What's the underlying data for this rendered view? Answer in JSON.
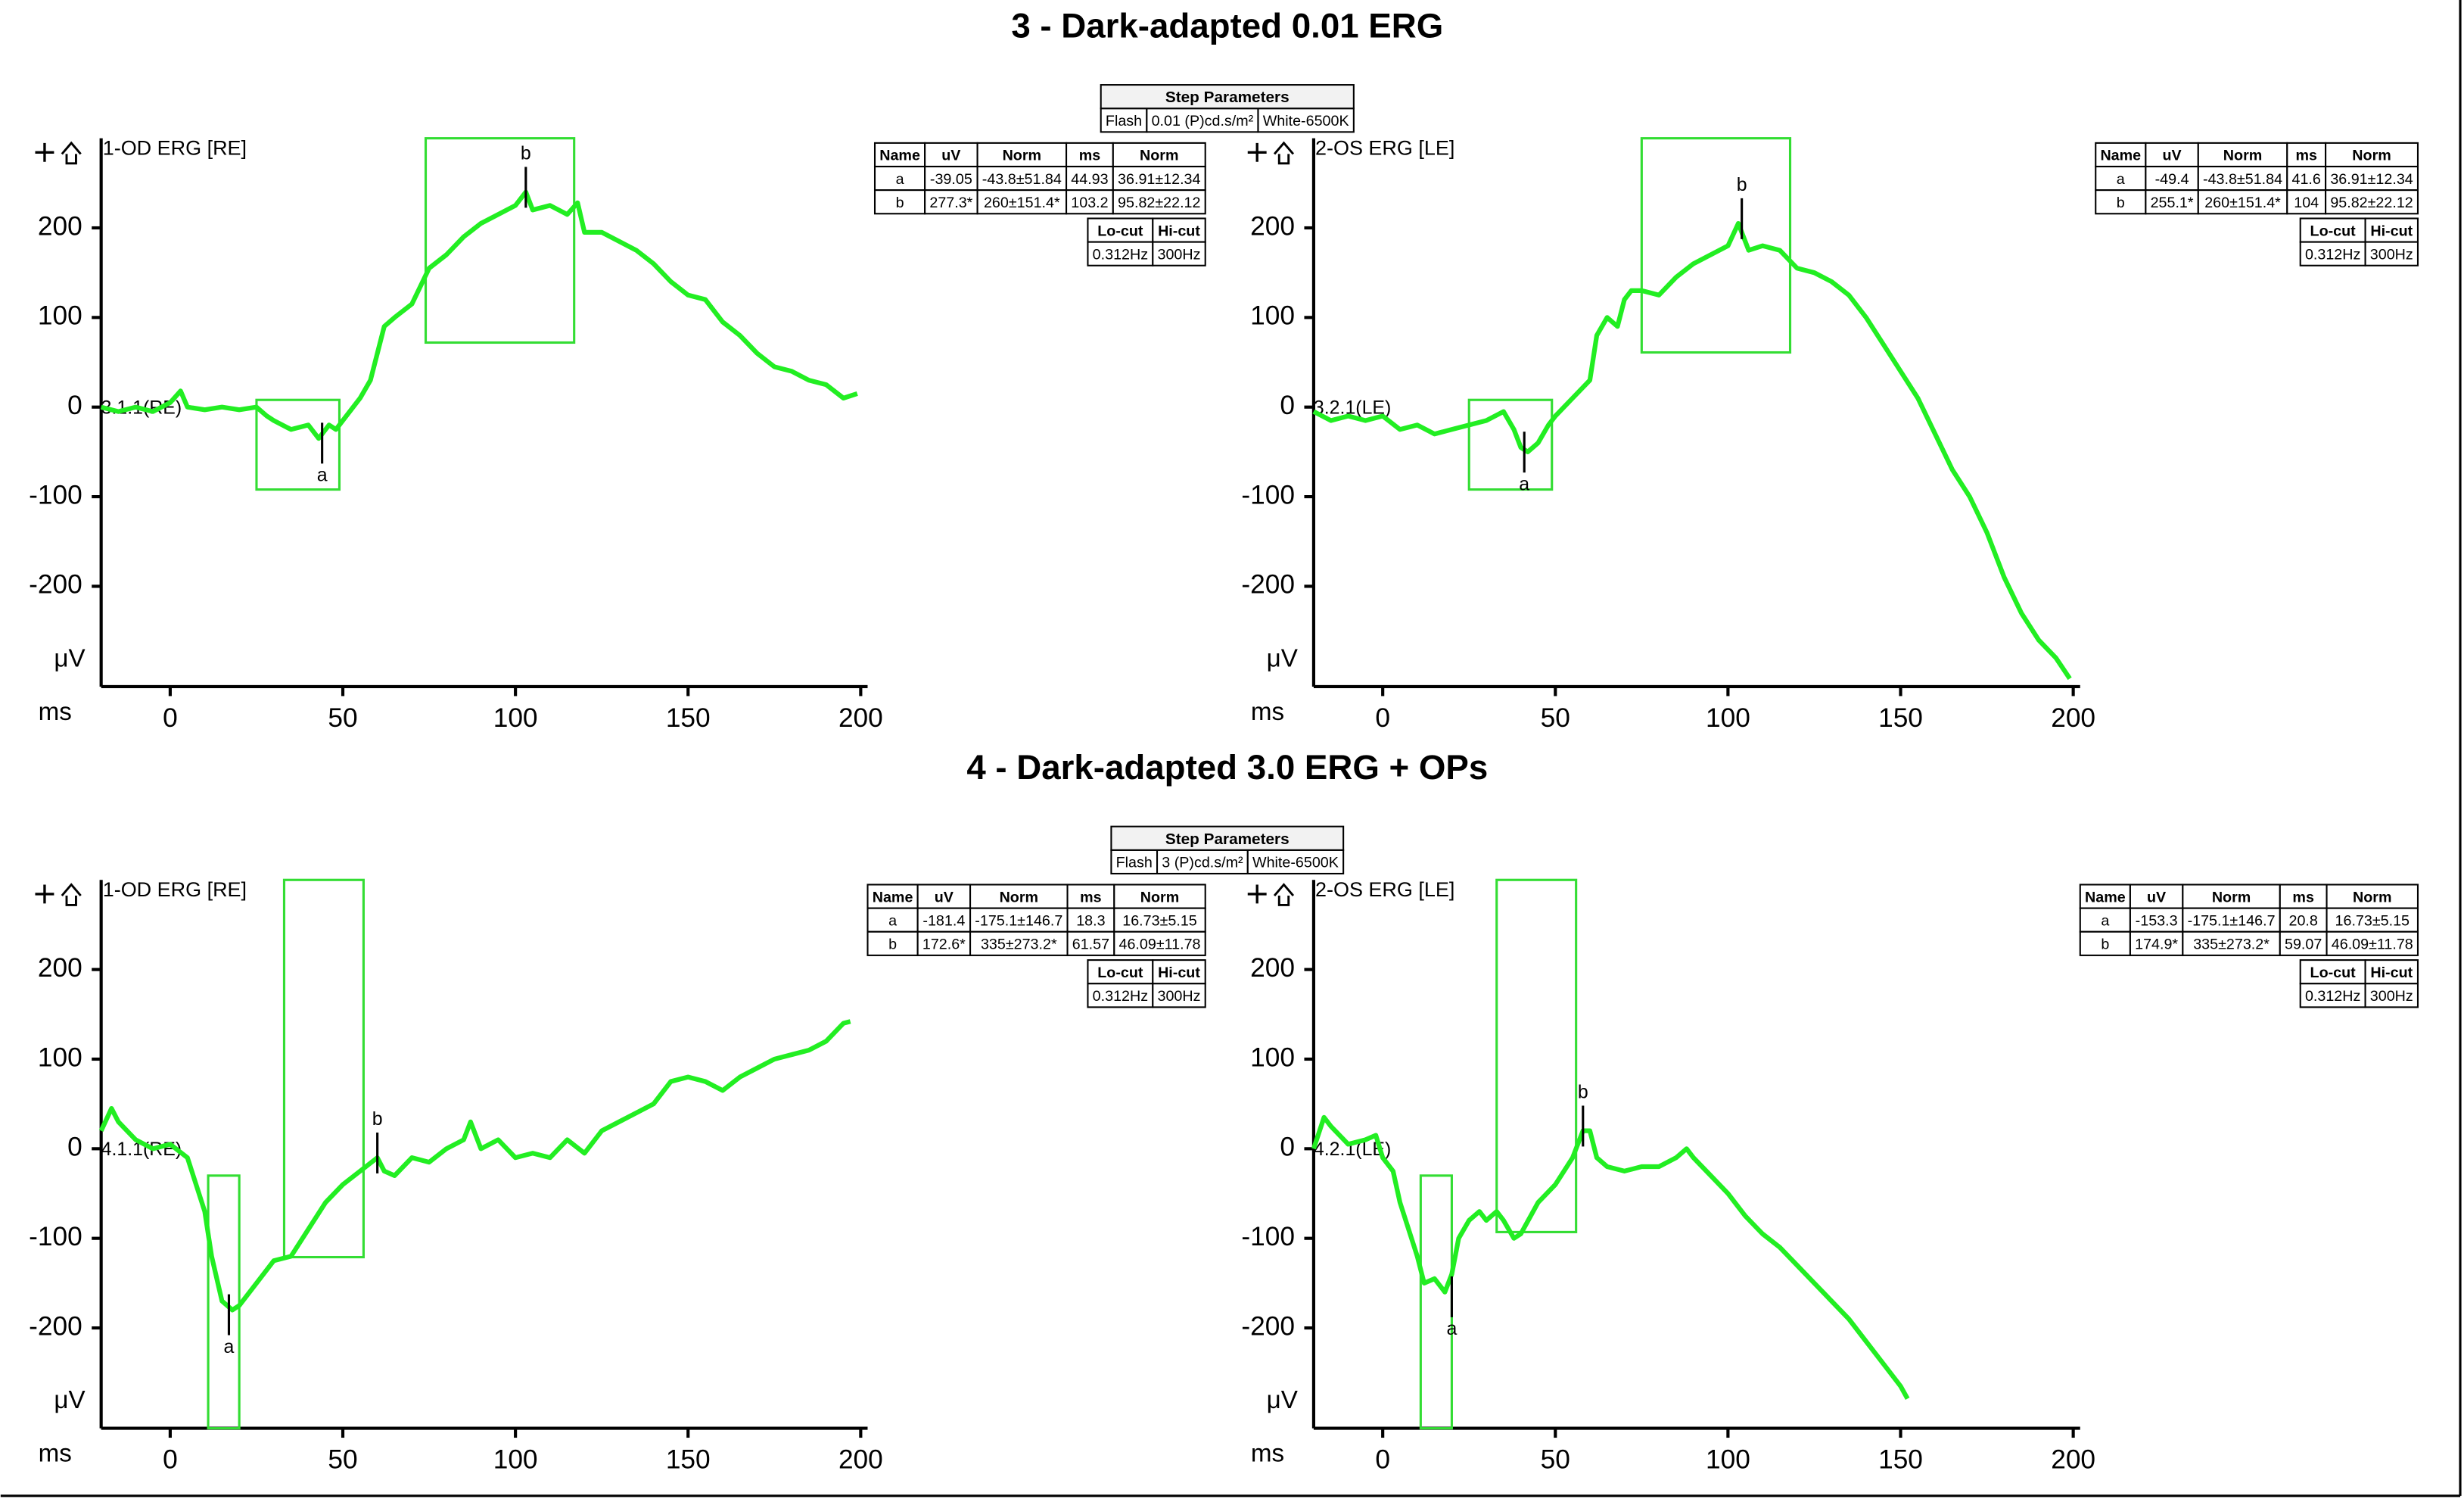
{
  "sections": [
    {
      "title": "3 - Dark-adapted 0.01 ERG",
      "step_parameters": {
        "title": "Step Parameters",
        "cells": [
          "Flash",
          "0.01 (P)cd.s/m²",
          "White-6500K"
        ]
      }
    },
    {
      "title": "4 - Dark-adapted 3.0 ERG + OPs",
      "step_parameters": {
        "title": "Step Parameters",
        "cells": [
          "Flash",
          "3 (P)cd.s/m²",
          "White-6500K"
        ]
      }
    }
  ],
  "chart_data": [
    {
      "type": "line",
      "title": "1-OD ERG [RE]",
      "trace_label": "3.1.1(RE)",
      "y_unit": "μV",
      "x_unit": "ms",
      "xlim": [
        -20,
        202
      ],
      "ylim": [
        -312,
        300
      ],
      "xticks": [
        0,
        50,
        100,
        150,
        200
      ],
      "yticks": [
        -200,
        -100,
        0,
        100,
        200
      ],
      "x": [
        -20,
        -15,
        -10,
        -5,
        0,
        3,
        5,
        10,
        15,
        20,
        25,
        28,
        30,
        35,
        40,
        43,
        46,
        48,
        50,
        55,
        58,
        60,
        62,
        65,
        70,
        75,
        80,
        85,
        90,
        95,
        100,
        103,
        105,
        110,
        115,
        118,
        120,
        125,
        130,
        135,
        140,
        145,
        150,
        155,
        160,
        165,
        170,
        175,
        180,
        185,
        190,
        195,
        199
      ],
      "series": [
        {
          "color": "#22ee22",
          "values": [
            0,
            -5,
            0,
            -5,
            5,
            18,
            0,
            -3,
            0,
            -3,
            0,
            -10,
            -15,
            -25,
            -20,
            -35,
            -20,
            -25,
            -15,
            10,
            30,
            60,
            90,
            100,
            115,
            155,
            170,
            190,
            205,
            215,
            225,
            240,
            220,
            225,
            215,
            228,
            195,
            195,
            185,
            175,
            160,
            140,
            125,
            120,
            95,
            80,
            60,
            45,
            40,
            30,
            25,
            10,
            15
          ]
        }
      ],
      "windows": [
        {
          "xlim": [
            25,
            49
          ],
          "ylim": [
            -92,
            8
          ]
        },
        {
          "xlim": [
            74,
            117
          ],
          "ylim": [
            72,
            300
          ]
        }
      ],
      "markers": [
        {
          "label": "a",
          "x": 44,
          "y": -35
        },
        {
          "label": "b",
          "x": 103,
          "y": 240
        }
      ],
      "results": {
        "columns": [
          "Name",
          "uV",
          "Norm",
          "ms",
          "Norm"
        ],
        "rows": [
          [
            "a",
            "-39.05",
            "-43.8±51.84",
            "44.93",
            "36.91±12.34"
          ],
          [
            "b",
            "277.3*",
            "260±151.4*",
            "103.2",
            "95.82±22.12"
          ]
        ]
      },
      "filters": {
        "columns": [
          "Lo-cut",
          "Hi-cut"
        ],
        "rows": [
          [
            "0.312Hz",
            "300Hz"
          ]
        ]
      }
    },
    {
      "type": "line",
      "title": "2-OS ERG [LE]",
      "trace_label": "3.2.1(LE)",
      "y_unit": "μV",
      "x_unit": "ms",
      "xlim": [
        -20,
        202
      ],
      "ylim": [
        -312,
        300
      ],
      "xticks": [
        0,
        50,
        100,
        150,
        200
      ],
      "yticks": [
        -200,
        -100,
        0,
        100,
        200
      ],
      "x": [
        -20,
        -15,
        -10,
        -5,
        0,
        5,
        10,
        15,
        20,
        25,
        30,
        35,
        38,
        40,
        42,
        45,
        48,
        50,
        55,
        60,
        62,
        65,
        68,
        70,
        72,
        75,
        80,
        85,
        90,
        95,
        100,
        103,
        106,
        110,
        115,
        120,
        125,
        130,
        135,
        140,
        145,
        150,
        155,
        160,
        165,
        170,
        175,
        180,
        185,
        190,
        195,
        199
      ],
      "series": [
        {
          "color": "#22ee22",
          "values": [
            -5,
            -15,
            -10,
            -15,
            -10,
            -25,
            -20,
            -30,
            -25,
            -20,
            -15,
            -5,
            -25,
            -45,
            -50,
            -40,
            -20,
            -10,
            10,
            30,
            80,
            100,
            90,
            120,
            130,
            130,
            125,
            145,
            160,
            170,
            180,
            205,
            175,
            180,
            175,
            155,
            150,
            140,
            125,
            100,
            70,
            40,
            10,
            -30,
            -70,
            -100,
            -140,
            -190,
            -230,
            -260,
            -280,
            -303
          ]
        }
      ],
      "windows": [
        {
          "xlim": [
            25,
            49
          ],
          "ylim": [
            -92,
            8
          ]
        },
        {
          "xlim": [
            75,
            118
          ],
          "ylim": [
            61,
            300
          ]
        }
      ],
      "markers": [
        {
          "label": "a",
          "x": 41,
          "y": -45
        },
        {
          "label": "b",
          "x": 104,
          "y": 205
        }
      ],
      "results": {
        "columns": [
          "Name",
          "uV",
          "Norm",
          "ms",
          "Norm"
        ],
        "rows": [
          [
            "a",
            "-49.4",
            "-43.8±51.84",
            "41.6",
            "36.91±12.34"
          ],
          [
            "b",
            "255.1*",
            "260±151.4*",
            "104",
            "95.82±22.12"
          ]
        ]
      },
      "filters": {
        "columns": [
          "Lo-cut",
          "Hi-cut"
        ],
        "rows": [
          [
            "0.312Hz",
            "300Hz"
          ]
        ]
      }
    },
    {
      "type": "line",
      "title": "1-OD ERG [RE]",
      "trace_label": "4.1.1(RE)",
      "y_unit": "μV",
      "x_unit": "ms",
      "xlim": [
        -20,
        202
      ],
      "ylim": [
        -312,
        300
      ],
      "xticks": [
        0,
        50,
        100,
        150,
        200
      ],
      "yticks": [
        -200,
        -100,
        0,
        100,
        200
      ],
      "x": [
        -20,
        -17,
        -15,
        -10,
        -5,
        0,
        5,
        10,
        12,
        15,
        18,
        20,
        25,
        30,
        35,
        40,
        45,
        50,
        55,
        60,
        62,
        65,
        70,
        75,
        80,
        85,
        87,
        90,
        95,
        100,
        105,
        110,
        115,
        120,
        125,
        130,
        135,
        140,
        145,
        150,
        155,
        160,
        165,
        170,
        175,
        180,
        185,
        190,
        195,
        197
      ],
      "series": [
        {
          "color": "#22ee22",
          "values": [
            20,
            45,
            30,
            10,
            0,
            5,
            -10,
            -70,
            -120,
            -170,
            -180,
            -175,
            -150,
            -125,
            -120,
            -90,
            -60,
            -40,
            -25,
            -10,
            -25,
            -30,
            -10,
            -15,
            0,
            10,
            30,
            0,
            10,
            -10,
            -5,
            -10,
            10,
            -5,
            20,
            30,
            40,
            50,
            75,
            80,
            75,
            65,
            80,
            90,
            100,
            105,
            110,
            120,
            140,
            142
          ]
        }
      ],
      "windows": [
        {
          "xlim": [
            11,
            20
          ],
          "ylim": [
            -312,
            -30
          ]
        },
        {
          "xlim": [
            33,
            56
          ],
          "ylim": [
            -121,
            300
          ]
        }
      ],
      "markers": [
        {
          "label": "a",
          "x": 17,
          "y": -180
        },
        {
          "label": "b",
          "x": 60,
          "y": -10
        }
      ],
      "results": {
        "columns": [
          "Name",
          "uV",
          "Norm",
          "ms",
          "Norm"
        ],
        "rows": [
          [
            "a",
            "-181.4",
            "-175.1±146.7",
            "18.3",
            "16.73±5.15"
          ],
          [
            "b",
            "172.6*",
            "335±273.2*",
            "61.57",
            "46.09±11.78"
          ]
        ]
      },
      "filters": {
        "columns": [
          "Lo-cut",
          "Hi-cut"
        ],
        "rows": [
          [
            "0.312Hz",
            "300Hz"
          ]
        ]
      }
    },
    {
      "type": "line",
      "title": "2-OS ERG [LE]",
      "trace_label": "4.2.1(LE)",
      "y_unit": "μV",
      "x_unit": "ms",
      "xlim": [
        -20,
        202
      ],
      "ylim": [
        -312,
        300
      ],
      "xticks": [
        0,
        50,
        100,
        150,
        200
      ],
      "yticks": [
        -200,
        -100,
        0,
        100,
        200
      ],
      "x": [
        -20,
        -17,
        -15,
        -10,
        -5,
        -2,
        0,
        3,
        5,
        10,
        12,
        15,
        18,
        20,
        22,
        25,
        28,
        30,
        33,
        35,
        38,
        40,
        45,
        50,
        55,
        58,
        60,
        62,
        65,
        70,
        75,
        80,
        85,
        88,
        90,
        95,
        100,
        105,
        110,
        115,
        120,
        125,
        130,
        135,
        140,
        145,
        150,
        152
      ],
      "series": [
        {
          "color": "#22ee22",
          "values": [
            0,
            35,
            25,
            5,
            10,
            15,
            -10,
            -25,
            -60,
            -120,
            -150,
            -145,
            -160,
            -140,
            -100,
            -80,
            -70,
            -80,
            -70,
            -80,
            -100,
            -95,
            -60,
            -40,
            -10,
            20,
            20,
            -10,
            -20,
            -25,
            -20,
            -20,
            -10,
            0,
            -10,
            -30,
            -50,
            -75,
            -95,
            -110,
            -130,
            -150,
            -170,
            -190,
            -215,
            -240,
            -265,
            -279
          ]
        }
      ],
      "windows": [
        {
          "xlim": [
            11,
            20
          ],
          "ylim": [
            -312,
            -30
          ]
        },
        {
          "xlim": [
            33,
            56
          ],
          "ylim": [
            -93,
            300
          ]
        }
      ],
      "markers": [
        {
          "label": "a",
          "x": 20,
          "y": -160
        },
        {
          "label": "b",
          "x": 58,
          "y": 20
        }
      ],
      "results": {
        "columns": [
          "Name",
          "uV",
          "Norm",
          "ms",
          "Norm"
        ],
        "rows": [
          [
            "a",
            "-153.3",
            "-175.1±146.7",
            "20.8",
            "16.73±5.15"
          ],
          [
            "b",
            "174.9*",
            "335±273.2*",
            "59.07",
            "46.09±11.78"
          ]
        ]
      },
      "filters": {
        "columns": [
          "Lo-cut",
          "Hi-cut"
        ],
        "rows": [
          [
            "0.312Hz",
            "300Hz"
          ]
        ]
      }
    }
  ]
}
